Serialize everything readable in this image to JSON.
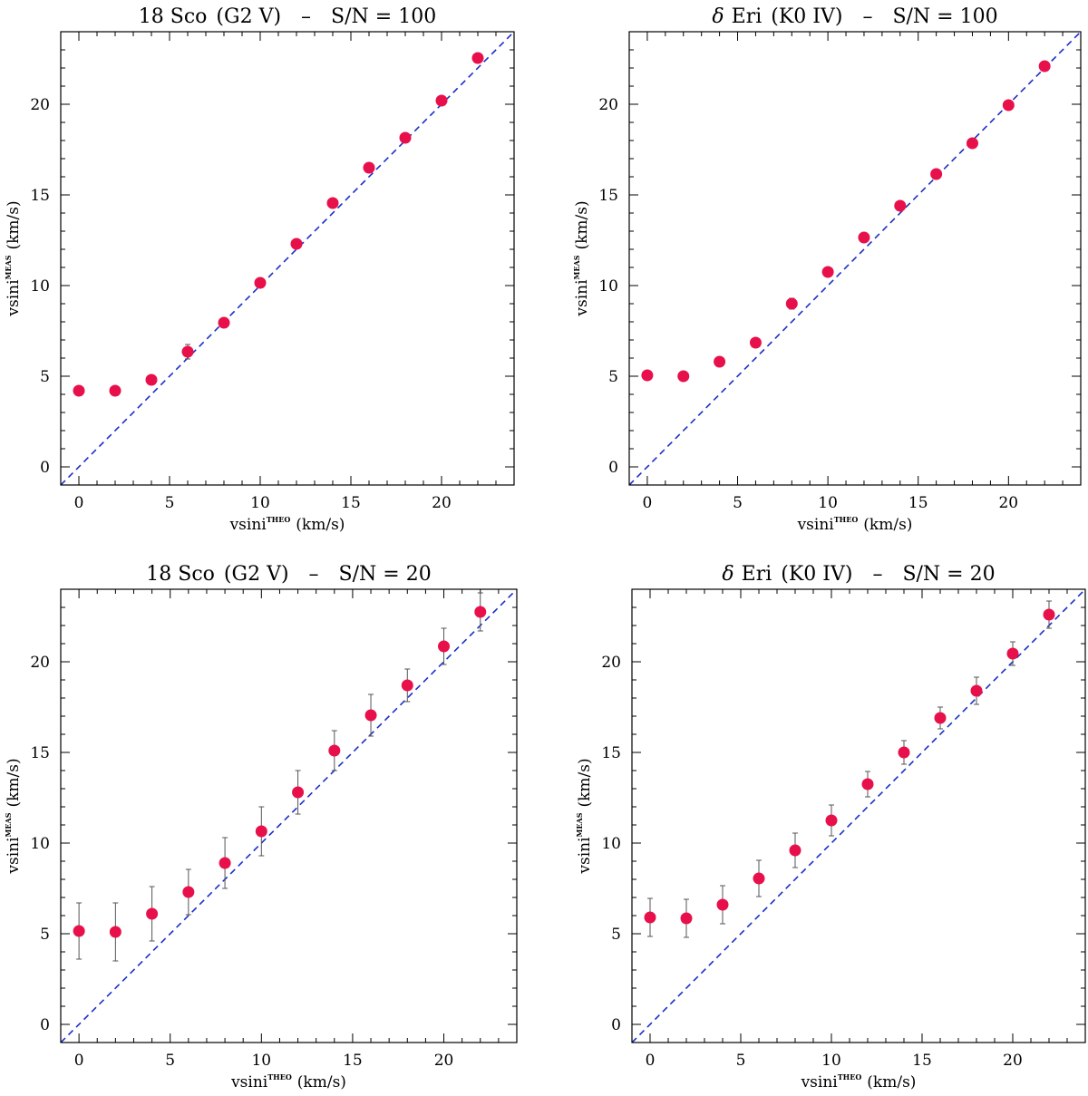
{
  "colors": {
    "point": "#e8104a",
    "diagonal": "#1a2fc8",
    "errorbar": "#555555",
    "axes": "#000000"
  },
  "chart_data": [
    {
      "type": "scatter",
      "title_star": "18 Sco",
      "title_prefix": "",
      "title_spectral": "(G2 V)",
      "title_sep": "–",
      "title_snr": "S/N = 100",
      "xlabel_main": "vsini",
      "xlabel_sup": "THEO",
      "xlabel_unit": "(km/s)",
      "ylabel_main": "vsini",
      "ylabel_sup": "MEAS",
      "ylabel_unit": "(km/s)",
      "xlim": [
        -1,
        24
      ],
      "ylim": [
        -1,
        24
      ],
      "xticks": [
        0,
        5,
        10,
        15,
        20
      ],
      "yticks": [
        0,
        5,
        10,
        15,
        20
      ],
      "x": [
        0,
        2,
        4,
        6,
        8,
        10,
        12,
        14,
        16,
        18,
        20,
        22
      ],
      "y": [
        4.2,
        4.2,
        4.8,
        6.35,
        7.95,
        10.15,
        12.3,
        14.55,
        16.5,
        18.15,
        20.2,
        22.55
      ],
      "yerr": [
        0.1,
        0.1,
        0.15,
        0.4,
        0.2,
        0.15,
        0.15,
        0.15,
        0.15,
        0.15,
        0.15,
        0.15
      ]
    },
    {
      "type": "scatter",
      "title_star": "Eri",
      "title_prefix": "δ",
      "title_spectral": "(K0 IV)",
      "title_sep": "–",
      "title_snr": "S/N = 100",
      "xlabel_main": "vsini",
      "xlabel_sup": "THEO",
      "xlabel_unit": "(km/s)",
      "ylabel_main": "vsini",
      "ylabel_sup": "MEAS",
      "ylabel_unit": "(km/s)",
      "xlim": [
        -1,
        24
      ],
      "ylim": [
        -1,
        24
      ],
      "xticks": [
        0,
        5,
        10,
        15,
        20
      ],
      "yticks": [
        0,
        5,
        10,
        15,
        20
      ],
      "x": [
        0,
        2,
        4,
        6,
        8,
        10,
        12,
        14,
        16,
        18,
        20,
        22
      ],
      "y": [
        5.05,
        5.0,
        5.8,
        6.85,
        9.0,
        10.75,
        12.65,
        14.4,
        16.15,
        17.85,
        19.95,
        22.1
      ],
      "yerr": [
        0.1,
        0.1,
        0.1,
        0.15,
        0.3,
        0.15,
        0.15,
        0.15,
        0.15,
        0.15,
        0.15,
        0.15
      ]
    },
    {
      "type": "scatter",
      "title_star": "18 Sco",
      "title_prefix": "",
      "title_spectral": "(G2 V)",
      "title_sep": "–",
      "title_snr": "S/N = 20",
      "xlabel_main": "vsini",
      "xlabel_sup": "THEO",
      "xlabel_unit": "(km/s)",
      "ylabel_main": "vsini",
      "ylabel_sup": "MEAS",
      "ylabel_unit": "(km/s)",
      "xlim": [
        -1,
        24
      ],
      "ylim": [
        -1,
        24
      ],
      "xticks": [
        0,
        5,
        10,
        15,
        20
      ],
      "yticks": [
        0,
        5,
        10,
        15,
        20
      ],
      "x": [
        0,
        2,
        4,
        6,
        8,
        10,
        12,
        14,
        16,
        18,
        20,
        22
      ],
      "y": [
        5.15,
        5.1,
        6.1,
        7.3,
        8.9,
        10.65,
        12.8,
        15.1,
        17.05,
        18.7,
        20.85,
        22.75
      ],
      "yerr": [
        1.55,
        1.6,
        1.5,
        1.25,
        1.4,
        1.35,
        1.2,
        1.1,
        1.15,
        0.9,
        1.0,
        1.05
      ]
    },
    {
      "type": "scatter",
      "title_star": "Eri",
      "title_prefix": "δ",
      "title_spectral": "(K0 IV)",
      "title_sep": "–",
      "title_snr": "S/N = 20",
      "xlabel_main": "vsini",
      "xlabel_sup": "THEO",
      "xlabel_unit": "(km/s)",
      "ylabel_main": "vsini",
      "ylabel_sup": "MEAS",
      "ylabel_unit": "(km/s)",
      "xlim": [
        -1,
        24
      ],
      "ylim": [
        -1,
        24
      ],
      "xticks": [
        0,
        5,
        10,
        15,
        20
      ],
      "yticks": [
        0,
        5,
        10,
        15,
        20
      ],
      "x": [
        0,
        2,
        4,
        6,
        8,
        10,
        12,
        14,
        16,
        18,
        20,
        22
      ],
      "y": [
        5.9,
        5.85,
        6.6,
        8.05,
        9.6,
        11.25,
        13.25,
        15.0,
        16.9,
        18.4,
        20.45,
        22.6
      ],
      "yerr": [
        1.05,
        1.05,
        1.05,
        1.0,
        0.95,
        0.85,
        0.7,
        0.65,
        0.6,
        0.75,
        0.65,
        0.75
      ]
    }
  ]
}
